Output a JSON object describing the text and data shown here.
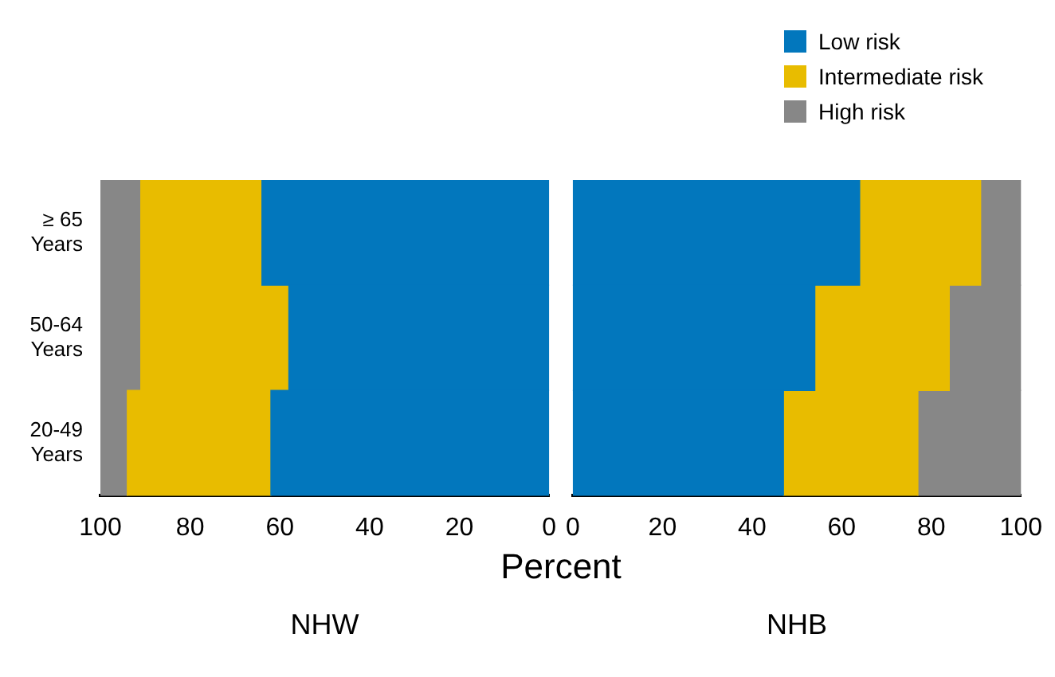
{
  "chart_data": [
    {
      "type": "bar",
      "orientation": "horizontal",
      "stacked": true,
      "categories": [
        "≥ 65 Years",
        "50-64 Years",
        "20-49 Years"
      ],
      "xlabel": "NHW",
      "xlim": [
        100,
        0
      ],
      "xticks": [
        100,
        80,
        60,
        40,
        20,
        0
      ],
      "annotations": [
        "Percent"
      ],
      "grid": false,
      "series": [
        {
          "color": "#0277bd",
          "values": [
            64,
            58,
            62
          ]
        },
        {
          "color": "#e8bc00",
          "values": [
            27,
            33,
            32
          ]
        },
        {
          "color": "#878787",
          "values": [
            9,
            9,
            6
          ]
        }
      ]
    },
    {
      "type": "bar",
      "orientation": "horizontal",
      "stacked": true,
      "categories": [
        null,
        null,
        null
      ],
      "xlabel": "NHB",
      "xlim": [
        0,
        100
      ],
      "xticks": [
        0,
        20,
        40,
        60,
        80,
        100
      ],
      "tick_labels": "x",
      "legend": "top right",
      "grid": false,
      "series": [
        {
          "name": "Low risk",
          "color": "#0277bd",
          "values": [
            64,
            54,
            47
          ]
        },
        {
          "name": "Intermediate risk",
          "color": "#e8bc00",
          "values": [
            27,
            30,
            30
          ]
        },
        {
          "name": "High risk",
          "color": "#878787",
          "values": [
            9,
            16,
            23
          ]
        }
      ]
    }
  ]
}
